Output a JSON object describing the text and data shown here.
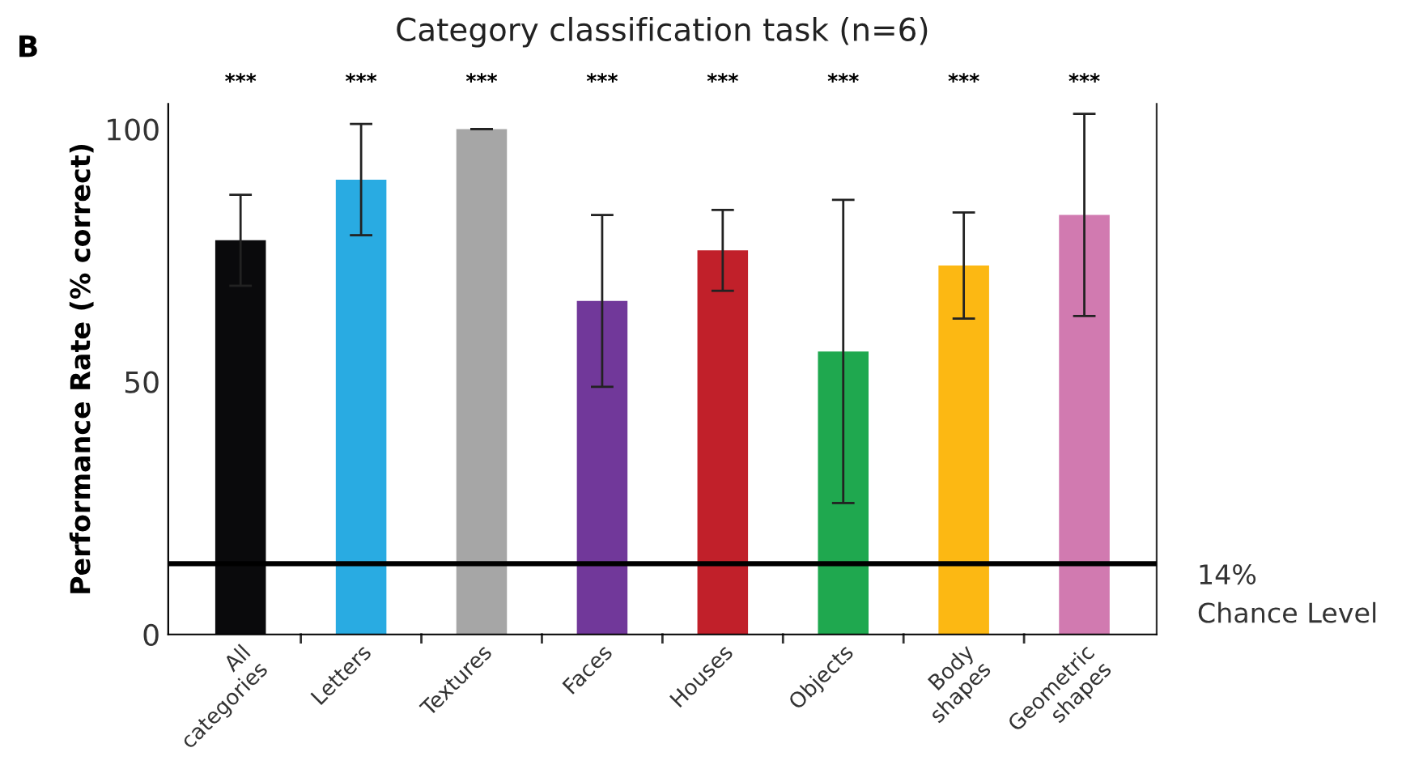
{
  "chart_data": {
    "type": "bar",
    "title": "Category classification task (n=6)",
    "ylabel": "Performance Rate (% correct)",
    "categories": [
      "All\ncategories",
      "Letters",
      "Textures",
      "Faces",
      "Houses",
      "Objects",
      "Body\nshapes",
      "Geometric\nshapes"
    ],
    "values": [
      78,
      90,
      100,
      66,
      76,
      56,
      73,
      83
    ],
    "errors": [
      9,
      11,
      0,
      17,
      8,
      30,
      10.5,
      20
    ],
    "colors": [
      "#0a0a0c",
      "#29abe2",
      "#a6a6a6",
      "#71389a",
      "#c1202a",
      "#1fa84f",
      "#fcb813",
      "#d17ab0"
    ],
    "ylim": [
      0,
      105
    ],
    "yticks": [
      0,
      50,
      100
    ],
    "ref_lines": [
      {
        "axis": "y",
        "value": 14,
        "label": "14%\nChance Level",
        "color": "#000000"
      }
    ],
    "annotations": [
      "B",
      "***",
      "***",
      "***",
      "***",
      "***",
      "***",
      "***",
      "***"
    ],
    "grid": false,
    "legend": false
  }
}
